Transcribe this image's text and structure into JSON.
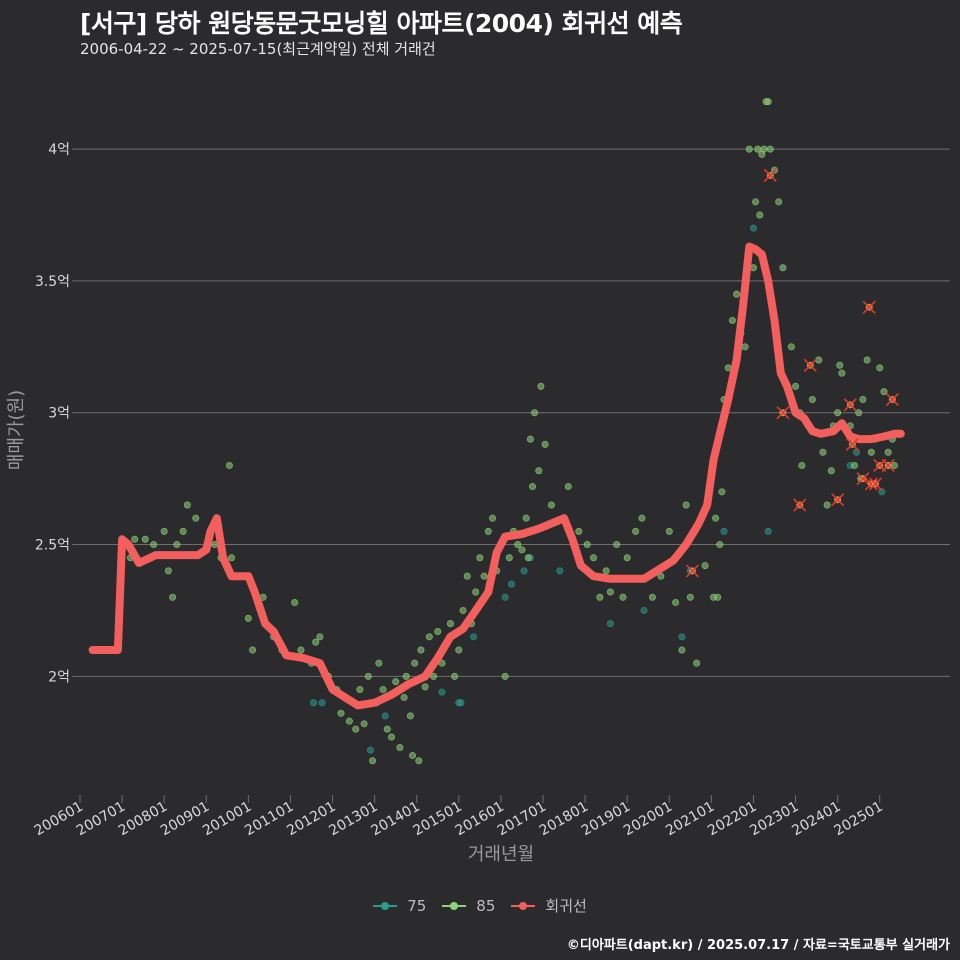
{
  "title": "[서구] 당하 원당동문굿모닝힐 아파트(2004) 회귀선 예측",
  "subtitle": "2006-04-22 ~ 2025-07-15(최근계약일) 전체 거래건",
  "footer": "©디아파트(dapt.kr) / 2025.07.17 / 자료=국토교통부 실거래가",
  "colors": {
    "s75": "#2a9d8f",
    "s85": "#8fd47a",
    "reg": "#f25f5c",
    "outlier": "#e23b2e",
    "grid": "#6e6e6e"
  },
  "chart_data": {
    "type": "scatter",
    "xlabel": "거래년월",
    "ylabel": "매매가(원)",
    "x_ticks": [
      "200601",
      "200701",
      "200801",
      "200901",
      "201001",
      "201101",
      "201201",
      "201301",
      "201401",
      "201501",
      "201601",
      "201701",
      "201801",
      "201901",
      "202001",
      "202101",
      "202201",
      "202301",
      "202401",
      "202501"
    ],
    "y_ticks": [
      {
        "value": 2.0,
        "label": "2억"
      },
      {
        "value": 2.5,
        "label": "2.5억"
      },
      {
        "value": 3.0,
        "label": "3억"
      },
      {
        "value": 3.5,
        "label": "3.5억"
      },
      {
        "value": 4.0,
        "label": "4억"
      }
    ],
    "xlim": [
      2006.0,
      2025.6
    ],
    "ylim": [
      1.55,
      4.3
    ],
    "y_unit": "억원",
    "legend": [
      "75",
      "85",
      "회귀선"
    ],
    "series": [
      {
        "name": "75",
        "points": [
          [
            2011.55,
            1.9
          ],
          [
            2011.75,
            1.9
          ],
          [
            2012.9,
            1.72
          ],
          [
            2013.25,
            1.85
          ],
          [
            2014.6,
            1.94
          ],
          [
            2015.0,
            1.9
          ],
          [
            2015.05,
            1.9
          ],
          [
            2015.35,
            2.15
          ],
          [
            2016.1,
            2.3
          ],
          [
            2016.25,
            2.35
          ],
          [
            2016.55,
            2.4
          ],
          [
            2016.7,
            2.45
          ],
          [
            2017.4,
            2.4
          ],
          [
            2018.6,
            2.2
          ],
          [
            2019.4,
            2.25
          ],
          [
            2020.3,
            2.15
          ],
          [
            2020.5,
            2.4
          ],
          [
            2021.3,
            2.55
          ],
          [
            2022.0,
            3.7
          ],
          [
            2022.35,
            2.55
          ],
          [
            2024.3,
            2.8
          ],
          [
            2024.45,
            2.85
          ],
          [
            2025.05,
            2.7
          ],
          [
            2025.2,
            2.8
          ]
        ]
      },
      {
        "name": "85",
        "points": [
          [
            2007.2,
            2.45
          ],
          [
            2007.3,
            2.52
          ],
          [
            2007.55,
            2.52
          ],
          [
            2007.65,
            2.45
          ],
          [
            2007.75,
            2.5
          ],
          [
            2008.0,
            2.55
          ],
          [
            2008.1,
            2.4
          ],
          [
            2008.2,
            2.3
          ],
          [
            2008.3,
            2.5
          ],
          [
            2008.45,
            2.55
          ],
          [
            2008.55,
            2.65
          ],
          [
            2008.75,
            2.6
          ],
          [
            2009.2,
            2.5
          ],
          [
            2009.35,
            2.45
          ],
          [
            2009.55,
            2.8
          ],
          [
            2009.6,
            2.45
          ],
          [
            2009.8,
            2.38
          ],
          [
            2010.0,
            2.22
          ],
          [
            2010.1,
            2.1
          ],
          [
            2010.35,
            2.3
          ],
          [
            2010.6,
            2.15
          ],
          [
            2010.8,
            2.1
          ],
          [
            2011.1,
            2.28
          ],
          [
            2011.25,
            2.1
          ],
          [
            2011.5,
            2.05
          ],
          [
            2011.6,
            2.13
          ],
          [
            2011.7,
            2.15
          ],
          [
            2011.9,
            2.0
          ],
          [
            2012.0,
            1.95
          ],
          [
            2012.1,
            1.95
          ],
          [
            2012.2,
            1.86
          ],
          [
            2012.4,
            1.83
          ],
          [
            2012.5,
            1.9
          ],
          [
            2012.55,
            1.8
          ],
          [
            2012.65,
            1.95
          ],
          [
            2012.75,
            1.82
          ],
          [
            2012.85,
            2.0
          ],
          [
            2012.95,
            1.68
          ],
          [
            2013.05,
            1.9
          ],
          [
            2013.1,
            2.05
          ],
          [
            2013.2,
            1.95
          ],
          [
            2013.3,
            1.8
          ],
          [
            2013.4,
            1.77
          ],
          [
            2013.5,
            1.98
          ],
          [
            2013.6,
            1.73
          ],
          [
            2013.7,
            1.92
          ],
          [
            2013.75,
            2.0
          ],
          [
            2013.85,
            1.85
          ],
          [
            2013.9,
            1.7
          ],
          [
            2013.95,
            2.05
          ],
          [
            2014.05,
            1.68
          ],
          [
            2014.1,
            2.1
          ],
          [
            2014.2,
            1.96
          ],
          [
            2014.3,
            2.15
          ],
          [
            2014.4,
            2.0
          ],
          [
            2014.5,
            2.17
          ],
          [
            2014.6,
            2.05
          ],
          [
            2014.7,
            2.12
          ],
          [
            2014.8,
            2.2
          ],
          [
            2014.9,
            2.0
          ],
          [
            2015.0,
            2.1
          ],
          [
            2015.1,
            2.25
          ],
          [
            2015.2,
            2.38
          ],
          [
            2015.3,
            2.2
          ],
          [
            2015.4,
            2.32
          ],
          [
            2015.5,
            2.45
          ],
          [
            2015.6,
            2.38
          ],
          [
            2015.7,
            2.55
          ],
          [
            2015.8,
            2.6
          ],
          [
            2015.9,
            2.4
          ],
          [
            2016.0,
            2.5
          ],
          [
            2016.1,
            2.0
          ],
          [
            2016.2,
            2.45
          ],
          [
            2016.3,
            2.55
          ],
          [
            2016.4,
            2.5
          ],
          [
            2016.5,
            2.48
          ],
          [
            2016.6,
            2.6
          ],
          [
            2016.65,
            2.45
          ],
          [
            2016.7,
            2.9
          ],
          [
            2016.75,
            2.72
          ],
          [
            2016.8,
            3.0
          ],
          [
            2016.9,
            2.78
          ],
          [
            2016.95,
            3.1
          ],
          [
            2017.05,
            2.88
          ],
          [
            2017.2,
            2.65
          ],
          [
            2017.6,
            2.72
          ],
          [
            2017.85,
            2.55
          ],
          [
            2018.05,
            2.5
          ],
          [
            2018.2,
            2.45
          ],
          [
            2018.35,
            2.3
          ],
          [
            2018.5,
            2.4
          ],
          [
            2018.6,
            2.32
          ],
          [
            2018.75,
            2.5
          ],
          [
            2018.9,
            2.3
          ],
          [
            2019.0,
            2.45
          ],
          [
            2019.2,
            2.55
          ],
          [
            2019.35,
            2.6
          ],
          [
            2019.6,
            2.3
          ],
          [
            2019.8,
            2.38
          ],
          [
            2020.0,
            2.55
          ],
          [
            2020.15,
            2.28
          ],
          [
            2020.3,
            2.1
          ],
          [
            2020.4,
            2.65
          ],
          [
            2020.5,
            2.3
          ],
          [
            2020.65,
            2.05
          ],
          [
            2020.85,
            2.42
          ],
          [
            2021.05,
            2.3
          ],
          [
            2021.1,
            2.6
          ],
          [
            2021.15,
            2.3
          ],
          [
            2021.2,
            2.5
          ],
          [
            2021.25,
            2.7
          ],
          [
            2021.3,
            3.05
          ],
          [
            2021.4,
            3.17
          ],
          [
            2021.5,
            3.35
          ],
          [
            2021.6,
            3.45
          ],
          [
            2021.7,
            3.3
          ],
          [
            2021.8,
            3.25
          ],
          [
            2021.9,
            4.0
          ],
          [
            2022.0,
            3.55
          ],
          [
            2022.05,
            3.8
          ],
          [
            2022.1,
            4.0
          ],
          [
            2022.15,
            3.75
          ],
          [
            2022.2,
            3.98
          ],
          [
            2022.25,
            4.0
          ],
          [
            2022.3,
            4.18
          ],
          [
            2022.35,
            4.18
          ],
          [
            2022.4,
            4.0
          ],
          [
            2022.5,
            3.92
          ],
          [
            2022.6,
            3.8
          ],
          [
            2022.7,
            3.55
          ],
          [
            2022.9,
            3.25
          ],
          [
            2023.0,
            3.1
          ],
          [
            2023.1,
            3.0
          ],
          [
            2023.15,
            2.8
          ],
          [
            2023.3,
            2.95
          ],
          [
            2023.4,
            3.05
          ],
          [
            2023.55,
            3.2
          ],
          [
            2023.65,
            2.85
          ],
          [
            2023.75,
            2.65
          ],
          [
            2023.85,
            2.78
          ],
          [
            2023.9,
            2.95
          ],
          [
            2024.0,
            3.0
          ],
          [
            2024.05,
            3.18
          ],
          [
            2024.1,
            3.15
          ],
          [
            2024.3,
            2.95
          ],
          [
            2024.4,
            2.8
          ],
          [
            2024.5,
            3.0
          ],
          [
            2024.55,
            2.75
          ],
          [
            2024.6,
            3.05
          ],
          [
            2024.7,
            3.2
          ],
          [
            2024.8,
            2.85
          ],
          [
            2024.9,
            2.9
          ],
          [
            2025.0,
            3.17
          ],
          [
            2025.1,
            3.08
          ],
          [
            2025.2,
            2.85
          ],
          [
            2025.3,
            2.9
          ],
          [
            2025.35,
            2.8
          ]
        ]
      },
      {
        "name": "회귀선",
        "points": [
          [
            2006.3,
            2.1
          ],
          [
            2006.9,
            2.1
          ],
          [
            2007.0,
            2.52
          ],
          [
            2007.15,
            2.5
          ],
          [
            2007.4,
            2.43
          ],
          [
            2007.8,
            2.46
          ],
          [
            2008.4,
            2.46
          ],
          [
            2008.8,
            2.46
          ],
          [
            2009.0,
            2.48
          ],
          [
            2009.1,
            2.55
          ],
          [
            2009.25,
            2.6
          ],
          [
            2009.4,
            2.45
          ],
          [
            2009.6,
            2.38
          ],
          [
            2010.0,
            2.38
          ],
          [
            2010.15,
            2.32
          ],
          [
            2010.4,
            2.2
          ],
          [
            2010.6,
            2.17
          ],
          [
            2010.9,
            2.08
          ],
          [
            2011.3,
            2.07
          ],
          [
            2011.7,
            2.05
          ],
          [
            2012.0,
            1.95
          ],
          [
            2012.3,
            1.92
          ],
          [
            2012.6,
            1.89
          ],
          [
            2013.0,
            1.9
          ],
          [
            2013.4,
            1.93
          ],
          [
            2013.8,
            1.97
          ],
          [
            2014.2,
            2.0
          ],
          [
            2014.5,
            2.07
          ],
          [
            2014.8,
            2.15
          ],
          [
            2015.1,
            2.18
          ],
          [
            2015.4,
            2.25
          ],
          [
            2015.7,
            2.32
          ],
          [
            2015.9,
            2.47
          ],
          [
            2016.1,
            2.53
          ],
          [
            2016.5,
            2.54
          ],
          [
            2016.9,
            2.56
          ],
          [
            2017.2,
            2.58
          ],
          [
            2017.5,
            2.6
          ],
          [
            2017.7,
            2.52
          ],
          [
            2017.9,
            2.42
          ],
          [
            2018.2,
            2.38
          ],
          [
            2018.6,
            2.37
          ],
          [
            2019.0,
            2.37
          ],
          [
            2019.4,
            2.37
          ],
          [
            2019.8,
            2.41
          ],
          [
            2020.1,
            2.44
          ],
          [
            2020.4,
            2.5
          ],
          [
            2020.7,
            2.58
          ],
          [
            2020.9,
            2.65
          ],
          [
            2021.05,
            2.82
          ],
          [
            2021.2,
            2.92
          ],
          [
            2021.4,
            3.05
          ],
          [
            2021.6,
            3.2
          ],
          [
            2021.75,
            3.4
          ],
          [
            2021.9,
            3.63
          ],
          [
            2022.05,
            3.62
          ],
          [
            2022.2,
            3.6
          ],
          [
            2022.35,
            3.5
          ],
          [
            2022.5,
            3.35
          ],
          [
            2022.65,
            3.15
          ],
          [
            2022.8,
            3.1
          ],
          [
            2023.0,
            3.0
          ],
          [
            2023.2,
            2.98
          ],
          [
            2023.4,
            2.93
          ],
          [
            2023.6,
            2.92
          ],
          [
            2023.9,
            2.93
          ],
          [
            2024.1,
            2.96
          ],
          [
            2024.3,
            2.91
          ],
          [
            2024.5,
            2.9
          ],
          [
            2024.8,
            2.9
          ],
          [
            2025.1,
            2.91
          ],
          [
            2025.35,
            2.92
          ],
          [
            2025.5,
            2.92
          ]
        ]
      }
    ],
    "outliers": [
      [
        2020.55,
        2.4
      ],
      [
        2022.4,
        3.9
      ],
      [
        2022.7,
        3.0
      ],
      [
        2023.1,
        2.65
      ],
      [
        2023.35,
        3.18
      ],
      [
        2024.0,
        2.67
      ],
      [
        2024.3,
        3.03
      ],
      [
        2024.35,
        2.88
      ],
      [
        2024.6,
        2.75
      ],
      [
        2024.75,
        3.4
      ],
      [
        2024.8,
        2.73
      ],
      [
        2024.9,
        2.73
      ],
      [
        2025.0,
        2.8
      ],
      [
        2025.2,
        2.8
      ],
      [
        2025.3,
        3.05
      ]
    ]
  }
}
